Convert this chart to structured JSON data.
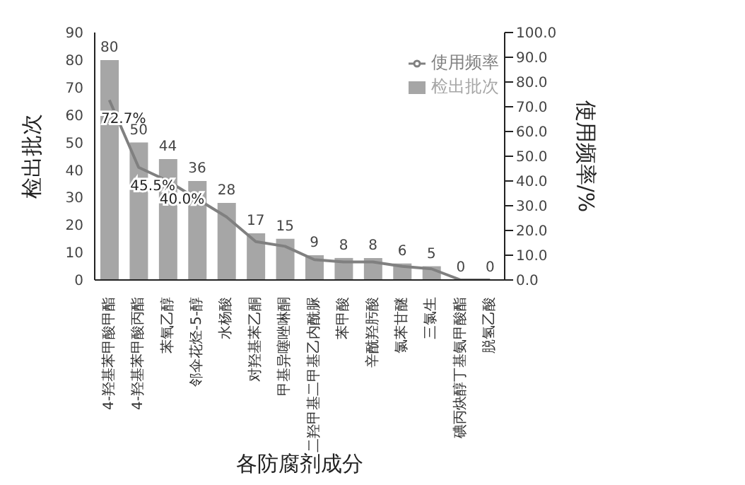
{
  "chart_data": {
    "type": "bar",
    "xlabel": "各防腐剂成分",
    "ylabel": "检出批次",
    "y2label": "使用频率/%",
    "categories": [
      "4-羟基苯甲酸甲酯",
      "4-羟基苯甲酸丙酯",
      "苯氧乙醇",
      "邻伞花烃-5-醇",
      "水杨酸",
      "对羟基苯乙酮",
      "甲基异噻唑啉酮",
      "二羟甲基二甲基乙内酰脲",
      "苯甲酸",
      "辛酰羟肟酸",
      "氯苯甘醚",
      "三氯生",
      "碘丙炔醇丁基氨甲酸酯",
      "脱氢乙酸"
    ],
    "series": [
      {
        "name": "检出批次",
        "color": "#a6a6a6",
        "values": [
          80,
          50,
          44,
          36,
          28,
          17,
          15,
          9,
          8,
          8,
          6,
          5,
          0,
          0
        ],
        "data_labels": true
      },
      {
        "name": "使用频率",
        "type": "line",
        "axis": "y2",
        "color": "#808080",
        "marker": "none",
        "values": [
          72.7,
          45.5,
          40.0,
          32.7,
          25.5,
          15.5,
          13.6,
          8.2,
          7.3,
          7.3,
          5.5,
          4.5,
          0,
          0
        ],
        "value_labels": [
          "72.7%",
          "45.5%",
          "40.0%",
          null,
          null,
          null,
          null,
          null,
          null,
          null,
          null,
          null,
          null,
          null
        ]
      }
    ],
    "ylim": [
      0,
      90
    ],
    "yticks": [
      0,
      10,
      20,
      30,
      40,
      50,
      60,
      70,
      80,
      90
    ],
    "y2lim": [
      0,
      100
    ],
    "y2ticks": [
      {
        "value": 0,
        "label": "0.0"
      },
      {
        "value": 10,
        "label": "10.0"
      },
      {
        "value": 20,
        "label": "20.0"
      },
      {
        "value": 30,
        "label": "30.0"
      },
      {
        "value": 40,
        "label": "40.0"
      },
      {
        "value": 50,
        "label": "50.0"
      },
      {
        "value": 60,
        "label": "60.0"
      },
      {
        "value": 70,
        "label": "70.0"
      },
      {
        "value": 80,
        "label": "80.0"
      },
      {
        "value": 90,
        "label": "90.0"
      },
      {
        "value": 100,
        "label": "100.0"
      }
    ],
    "grid": false,
    "legend": "top right"
  }
}
